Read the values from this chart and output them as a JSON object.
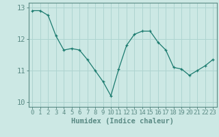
{
  "x": [
    0,
    1,
    2,
    3,
    4,
    5,
    6,
    7,
    8,
    9,
    10,
    11,
    12,
    13,
    14,
    15,
    16,
    17,
    18,
    19,
    20,
    21,
    22,
    23
  ],
  "y": [
    12.9,
    12.9,
    12.75,
    12.1,
    11.65,
    11.7,
    11.65,
    11.35,
    11.0,
    10.65,
    10.2,
    11.05,
    11.8,
    12.15,
    12.25,
    12.25,
    11.9,
    11.65,
    11.1,
    11.05,
    10.85,
    11.0,
    11.15,
    11.35
  ],
  "xlabel": "Humidex (Indice chaleur)",
  "ylim": [
    9.85,
    13.15
  ],
  "xlim": [
    -0.5,
    23.5
  ],
  "line_color": "#1a7a6e",
  "marker_color": "#1a7a6e",
  "bg_color": "#cce8e4",
  "grid_color": "#aed4d0",
  "spine_color": "#5a8a84",
  "yticks": [
    10,
    11,
    12,
    13
  ],
  "xticks": [
    0,
    1,
    2,
    3,
    4,
    5,
    6,
    7,
    8,
    9,
    10,
    11,
    12,
    13,
    14,
    15,
    16,
    17,
    18,
    19,
    20,
    21,
    22,
    23
  ],
  "tick_fontsize": 6.5,
  "xlabel_fontsize": 7.5,
  "ytick_fontsize": 7.5
}
